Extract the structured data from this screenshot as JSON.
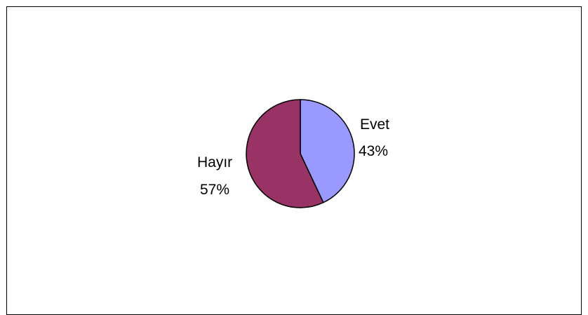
{
  "chart_data": {
    "type": "pie",
    "title": "",
    "slices": [
      {
        "label": "Evet",
        "value": 43,
        "percent_label": "43%",
        "color": "#9999ff"
      },
      {
        "label": "Hayır",
        "value": 57,
        "percent_label": "57%",
        "color": "#993366"
      }
    ],
    "stroke_color": "#000000",
    "legend": "none"
  }
}
